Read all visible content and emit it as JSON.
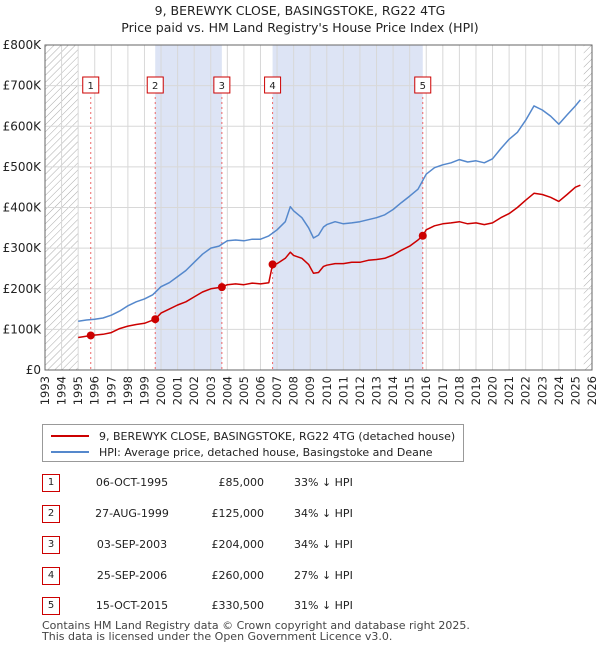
{
  "title_line1": "9, BEREWYK CLOSE, BASINGSTOKE, RG22 4TG",
  "title_line2": "Price paid vs. HM Land Registry's House Price Index (HPI)",
  "colors": {
    "price_line": "#cc0000",
    "hpi_line": "#5588cc",
    "sale_band": "#dde4f5",
    "hatch": "#aaaaaa",
    "grid": "#d8d8d8",
    "marker_line": "#ee6666"
  },
  "chart_data": {
    "type": "line",
    "xlim": [
      1993,
      2026
    ],
    "ylim": [
      0,
      800000
    ],
    "y_ticks": [
      {
        "value": 0,
        "label": "£0"
      },
      {
        "value": 100000,
        "label": "£100K"
      },
      {
        "value": 200000,
        "label": "£200K"
      },
      {
        "value": 300000,
        "label": "£300K"
      },
      {
        "value": 400000,
        "label": "£400K"
      },
      {
        "value": 500000,
        "label": "£500K"
      },
      {
        "value": 600000,
        "label": "£600K"
      },
      {
        "value": 700000,
        "label": "£700K"
      },
      {
        "value": 800000,
        "label": "£800K"
      }
    ],
    "x_ticks": [
      "1993",
      "1994",
      "1995",
      "1996",
      "1997",
      "1998",
      "1999",
      "2000",
      "2001",
      "2002",
      "2003",
      "2004",
      "2005",
      "2006",
      "2007",
      "2008",
      "2009",
      "2010",
      "2011",
      "2012",
      "2013",
      "2014",
      "2015",
      "2016",
      "2017",
      "2018",
      "2019",
      "2020",
      "2021",
      "2022",
      "2023",
      "2024",
      "2025",
      "2026"
    ],
    "data_start": 1995.0,
    "data_end": 2025.5,
    "series": [
      {
        "name": "9, BEREWYK CLOSE, BASINGSTOKE, RG22 4TG (detached house)",
        "color": "#cc0000",
        "points": [
          [
            1995.0,
            80000
          ],
          [
            1995.3,
            82000
          ],
          [
            1995.76,
            85000
          ],
          [
            1996.5,
            88000
          ],
          [
            1997.0,
            92000
          ],
          [
            1997.5,
            102000
          ],
          [
            1998.0,
            108000
          ],
          [
            1998.5,
            112000
          ],
          [
            1999.0,
            115000
          ],
          [
            1999.65,
            125000
          ],
          [
            2000.0,
            140000
          ],
          [
            2000.5,
            150000
          ],
          [
            2001.0,
            160000
          ],
          [
            2001.5,
            168000
          ],
          [
            2002.0,
            180000
          ],
          [
            2002.5,
            192000
          ],
          [
            2003.0,
            200000
          ],
          [
            2003.67,
            204000
          ],
          [
            2004.0,
            210000
          ],
          [
            2004.5,
            212000
          ],
          [
            2005.0,
            210000
          ],
          [
            2005.5,
            214000
          ],
          [
            2006.0,
            212000
          ],
          [
            2006.5,
            215000
          ],
          [
            2006.73,
            260000
          ],
          [
            2007.0,
            262000
          ],
          [
            2007.5,
            275000
          ],
          [
            2007.8,
            290000
          ],
          [
            2008.0,
            282000
          ],
          [
            2008.5,
            275000
          ],
          [
            2008.9,
            260000
          ],
          [
            2009.2,
            238000
          ],
          [
            2009.5,
            240000
          ],
          [
            2009.8,
            255000
          ],
          [
            2010.0,
            258000
          ],
          [
            2010.5,
            262000
          ],
          [
            2011.0,
            262000
          ],
          [
            2011.5,
            265000
          ],
          [
            2012.0,
            265000
          ],
          [
            2012.5,
            270000
          ],
          [
            2013.0,
            272000
          ],
          [
            2013.5,
            275000
          ],
          [
            2014.0,
            283000
          ],
          [
            2014.5,
            295000
          ],
          [
            2015.0,
            305000
          ],
          [
            2015.5,
            320000
          ],
          [
            2015.79,
            330500
          ],
          [
            2016.0,
            345000
          ],
          [
            2016.5,
            355000
          ],
          [
            2017.0,
            360000
          ],
          [
            2017.5,
            362000
          ],
          [
            2018.0,
            365000
          ],
          [
            2018.5,
            360000
          ],
          [
            2019.0,
            362000
          ],
          [
            2019.5,
            358000
          ],
          [
            2020.0,
            362000
          ],
          [
            2020.5,
            375000
          ],
          [
            2021.0,
            385000
          ],
          [
            2021.5,
            400000
          ],
          [
            2022.0,
            418000
          ],
          [
            2022.5,
            435000
          ],
          [
            2023.0,
            432000
          ],
          [
            2023.5,
            425000
          ],
          [
            2024.0,
            415000
          ],
          [
            2024.5,
            432000
          ],
          [
            2025.0,
            450000
          ],
          [
            2025.3,
            455000
          ]
        ]
      },
      {
        "name": "HPI: Average price, detached house, Basingstoke and Deane",
        "color": "#5588cc",
        "points": [
          [
            1995.0,
            120000
          ],
          [
            1995.5,
            123000
          ],
          [
            1996.0,
            125000
          ],
          [
            1996.5,
            128000
          ],
          [
            1997.0,
            135000
          ],
          [
            1997.5,
            145000
          ],
          [
            1998.0,
            158000
          ],
          [
            1998.5,
            168000
          ],
          [
            1999.0,
            175000
          ],
          [
            1999.5,
            185000
          ],
          [
            2000.0,
            205000
          ],
          [
            2000.5,
            215000
          ],
          [
            2001.0,
            230000
          ],
          [
            2001.5,
            245000
          ],
          [
            2002.0,
            265000
          ],
          [
            2002.5,
            285000
          ],
          [
            2003.0,
            300000
          ],
          [
            2003.5,
            305000
          ],
          [
            2004.0,
            318000
          ],
          [
            2004.5,
            320000
          ],
          [
            2005.0,
            318000
          ],
          [
            2005.5,
            322000
          ],
          [
            2006.0,
            322000
          ],
          [
            2006.5,
            330000
          ],
          [
            2007.0,
            345000
          ],
          [
            2007.5,
            365000
          ],
          [
            2007.8,
            402000
          ],
          [
            2008.0,
            392000
          ],
          [
            2008.5,
            375000
          ],
          [
            2008.9,
            350000
          ],
          [
            2009.2,
            325000
          ],
          [
            2009.5,
            332000
          ],
          [
            2009.8,
            352000
          ],
          [
            2010.0,
            358000
          ],
          [
            2010.5,
            365000
          ],
          [
            2011.0,
            360000
          ],
          [
            2011.5,
            362000
          ],
          [
            2012.0,
            365000
          ],
          [
            2012.5,
            370000
          ],
          [
            2013.0,
            375000
          ],
          [
            2013.5,
            382000
          ],
          [
            2014.0,
            395000
          ],
          [
            2014.5,
            412000
          ],
          [
            2015.0,
            428000
          ],
          [
            2015.5,
            445000
          ],
          [
            2016.0,
            482000
          ],
          [
            2016.5,
            498000
          ],
          [
            2017.0,
            505000
          ],
          [
            2017.5,
            510000
          ],
          [
            2018.0,
            518000
          ],
          [
            2018.5,
            512000
          ],
          [
            2019.0,
            515000
          ],
          [
            2019.5,
            510000
          ],
          [
            2020.0,
            520000
          ],
          [
            2020.5,
            545000
          ],
          [
            2021.0,
            568000
          ],
          [
            2021.5,
            585000
          ],
          [
            2022.0,
            615000
          ],
          [
            2022.5,
            650000
          ],
          [
            2023.0,
            640000
          ],
          [
            2023.5,
            625000
          ],
          [
            2024.0,
            605000
          ],
          [
            2024.5,
            628000
          ],
          [
            2025.0,
            650000
          ],
          [
            2025.3,
            665000
          ]
        ]
      }
    ],
    "sales": [
      {
        "num": "1",
        "x": 1995.76,
        "y": 85000
      },
      {
        "num": "2",
        "x": 1999.65,
        "y": 125000
      },
      {
        "num": "3",
        "x": 2003.67,
        "y": 204000
      },
      {
        "num": "4",
        "x": 2006.73,
        "y": 260000
      },
      {
        "num": "5",
        "x": 2015.79,
        "y": 330500
      }
    ],
    "legend_position": "below"
  },
  "legend": {
    "price_label": "9, BEREWYK CLOSE, BASINGSTOKE, RG22 4TG (detached house)",
    "hpi_label": "HPI: Average price, detached house, Basingstoke and Deane"
  },
  "sales_table": [
    {
      "num": "1",
      "date": "06-OCT-1995",
      "price": "£85,000",
      "hpi": "33% ↓ HPI"
    },
    {
      "num": "2",
      "date": "27-AUG-1999",
      "price": "£125,000",
      "hpi": "34% ↓ HPI"
    },
    {
      "num": "3",
      "date": "03-SEP-2003",
      "price": "£204,000",
      "hpi": "34% ↓ HPI"
    },
    {
      "num": "4",
      "date": "25-SEP-2006",
      "price": "£260,000",
      "hpi": "27% ↓ HPI"
    },
    {
      "num": "5",
      "date": "15-OCT-2015",
      "price": "£330,500",
      "hpi": "31% ↓ HPI"
    }
  ],
  "footer_line1": "Contains HM Land Registry data © Crown copyright and database right 2025.",
  "footer_line2": "This data is licensed under the Open Government Licence v3.0."
}
